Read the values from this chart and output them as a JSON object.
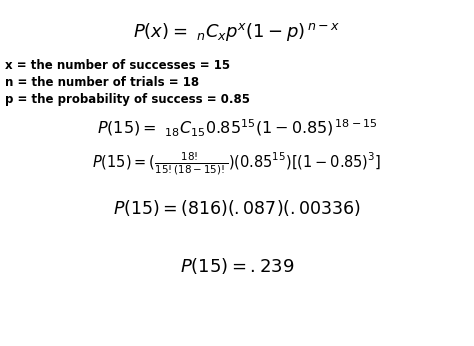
{
  "bg_color": "#ffffff",
  "figsize": [
    4.74,
    3.46
  ],
  "dpi": 100,
  "var_lines": [
    "x = the number of successes = 15",
    "n = the number of trials = 18",
    "p = the probability of success = 0.85"
  ]
}
